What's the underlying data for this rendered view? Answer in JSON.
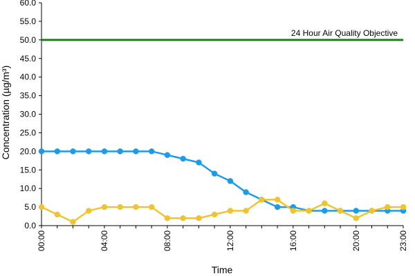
{
  "chart_data": {
    "type": "line",
    "title": "",
    "xlabel": "Time",
    "ylabel": "Concentration (µg/m³)",
    "ylim": [
      0,
      60
    ],
    "y_ticks": [
      "0.0",
      "5.0",
      "10.0",
      "15.0",
      "20.0",
      "25.0",
      "30.0",
      "35.0",
      "40.0",
      "45.0",
      "50.0",
      "55.0",
      "60.0"
    ],
    "x": [
      "00:00",
      "01:00",
      "02:00",
      "03:00",
      "04:00",
      "05:00",
      "06:00",
      "07:00",
      "08:00",
      "09:00",
      "10:00",
      "11:00",
      "12:00",
      "13:00",
      "14:00",
      "15:00",
      "16:00",
      "17:00",
      "18:00",
      "19:00",
      "20:00",
      "21:00",
      "22:00",
      "23:00"
    ],
    "x_tick_labels": [
      "00:00",
      "04:00",
      "08:00",
      "12:00",
      "16:00",
      "20:00",
      "23:00"
    ],
    "grid": false,
    "legend": "none",
    "series": [
      {
        "color": "#1f9ae6",
        "values": [
          20,
          20,
          20,
          20,
          20,
          20,
          20,
          20,
          19,
          18,
          17,
          14,
          12,
          9,
          7,
          5,
          5,
          4,
          4,
          4,
          4,
          4,
          4,
          4
        ]
      },
      {
        "color": "#f0c430",
        "values": [
          5,
          3,
          1,
          4,
          5,
          5,
          5,
          5,
          2,
          2,
          2,
          3,
          4,
          4,
          7,
          7,
          4,
          4,
          6,
          4,
          2,
          4,
          5,
          5
        ]
      }
    ],
    "reference_line": {
      "label": "24 Hour Air Quality Objective",
      "value": 50,
      "color": "#1e7d1e"
    }
  }
}
